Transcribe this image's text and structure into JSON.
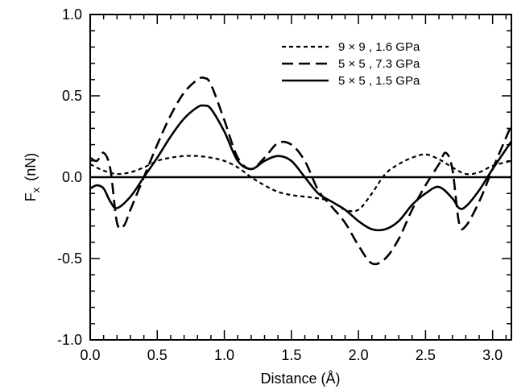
{
  "chart_data": {
    "type": "line",
    "title": "",
    "xlabel": "Distance  (Å)",
    "ylabel_main": "F",
    "ylabel_sub": "x",
    "ylabel_unit": "(nN)",
    "xlim": [
      0,
      3.14
    ],
    "ylim": [
      -1.0,
      1.0
    ],
    "x_ticks": [
      0,
      0.5,
      1.0,
      1.5,
      2.0,
      2.5,
      3.0
    ],
    "x_tick_labels": [
      "0.0",
      "0.5",
      "1.0",
      "1.5",
      "2.0",
      "2.5",
      "3.0"
    ],
    "y_ticks": [
      -1.0,
      -0.5,
      0,
      0.5,
      1.0
    ],
    "y_tick_labels": [
      "-1.0",
      "-0.5",
      "0.0",
      "0.5",
      "1.0"
    ],
    "grid": false,
    "legend_position": "top-right",
    "zero_line": true,
    "series": [
      {
        "name": "9 × 9 , 1.6 GPa",
        "style": "short-dash",
        "points": [
          [
            0,
            0.08
          ],
          [
            0.1,
            0.04
          ],
          [
            0.2,
            0.02
          ],
          [
            0.3,
            0.03
          ],
          [
            0.4,
            0.06
          ],
          [
            0.5,
            0.1
          ],
          [
            0.6,
            0.12
          ],
          [
            0.7,
            0.13
          ],
          [
            0.8,
            0.13
          ],
          [
            0.9,
            0.12
          ],
          [
            1.0,
            0.1
          ],
          [
            1.1,
            0.06
          ],
          [
            1.2,
            0.0
          ],
          [
            1.3,
            -0.05
          ],
          [
            1.4,
            -0.09
          ],
          [
            1.5,
            -0.11
          ],
          [
            1.6,
            -0.12
          ],
          [
            1.7,
            -0.13
          ],
          [
            1.8,
            -0.15
          ],
          [
            1.9,
            -0.2
          ],
          [
            2.0,
            -0.2
          ],
          [
            2.1,
            -0.1
          ],
          [
            2.2,
            0.02
          ],
          [
            2.3,
            0.08
          ],
          [
            2.4,
            0.12
          ],
          [
            2.5,
            0.14
          ],
          [
            2.6,
            0.11
          ],
          [
            2.7,
            0.06
          ],
          [
            2.8,
            0.02
          ],
          [
            2.9,
            0.03
          ],
          [
            3.0,
            0.07
          ],
          [
            3.14,
            0.1
          ]
        ]
      },
      {
        "name": "5 × 5 , 7.3 GPa",
        "style": "long-dash",
        "points": [
          [
            0,
            0.12
          ],
          [
            0.05,
            0.1
          ],
          [
            0.1,
            0.15
          ],
          [
            0.15,
            0.05
          ],
          [
            0.2,
            -0.28
          ],
          [
            0.25,
            -0.3
          ],
          [
            0.3,
            -0.2
          ],
          [
            0.4,
            0.0
          ],
          [
            0.5,
            0.2
          ],
          [
            0.6,
            0.38
          ],
          [
            0.7,
            0.52
          ],
          [
            0.8,
            0.6
          ],
          [
            0.85,
            0.61
          ],
          [
            0.9,
            0.57
          ],
          [
            1.0,
            0.35
          ],
          [
            1.1,
            0.12
          ],
          [
            1.2,
            0.05
          ],
          [
            1.3,
            0.12
          ],
          [
            1.4,
            0.21
          ],
          [
            1.5,
            0.2
          ],
          [
            1.6,
            0.1
          ],
          [
            1.7,
            -0.08
          ],
          [
            1.8,
            -0.18
          ],
          [
            1.9,
            -0.28
          ],
          [
            2.0,
            -0.42
          ],
          [
            2.1,
            -0.53
          ],
          [
            2.2,
            -0.5
          ],
          [
            2.3,
            -0.38
          ],
          [
            2.4,
            -0.2
          ],
          [
            2.5,
            -0.05
          ],
          [
            2.6,
            0.08
          ],
          [
            2.65,
            0.15
          ],
          [
            2.7,
            0.05
          ],
          [
            2.75,
            -0.28
          ],
          [
            2.8,
            -0.3
          ],
          [
            2.9,
            -0.15
          ],
          [
            3.0,
            0.05
          ],
          [
            3.14,
            0.32
          ]
        ]
      },
      {
        "name": "5 × 5 , 1.5 GPa",
        "style": "solid",
        "points": [
          [
            0,
            -0.07
          ],
          [
            0.05,
            -0.05
          ],
          [
            0.1,
            -0.07
          ],
          [
            0.15,
            -0.15
          ],
          [
            0.2,
            -0.19
          ],
          [
            0.3,
            -0.12
          ],
          [
            0.4,
            0.0
          ],
          [
            0.5,
            0.12
          ],
          [
            0.6,
            0.25
          ],
          [
            0.7,
            0.36
          ],
          [
            0.8,
            0.43
          ],
          [
            0.85,
            0.44
          ],
          [
            0.9,
            0.42
          ],
          [
            1.0,
            0.28
          ],
          [
            1.1,
            0.1
          ],
          [
            1.2,
            0.05
          ],
          [
            1.3,
            0.1
          ],
          [
            1.4,
            0.13
          ],
          [
            1.5,
            0.1
          ],
          [
            1.6,
            0.0
          ],
          [
            1.7,
            -0.1
          ],
          [
            1.8,
            -0.15
          ],
          [
            1.9,
            -0.2
          ],
          [
            2.0,
            -0.27
          ],
          [
            2.1,
            -0.32
          ],
          [
            2.2,
            -0.32
          ],
          [
            2.3,
            -0.27
          ],
          [
            2.4,
            -0.17
          ],
          [
            2.5,
            -0.1
          ],
          [
            2.6,
            -0.06
          ],
          [
            2.7,
            -0.13
          ],
          [
            2.75,
            -0.19
          ],
          [
            2.8,
            -0.18
          ],
          [
            2.9,
            -0.08
          ],
          [
            3.0,
            0.05
          ],
          [
            3.14,
            0.22
          ]
        ]
      }
    ]
  }
}
